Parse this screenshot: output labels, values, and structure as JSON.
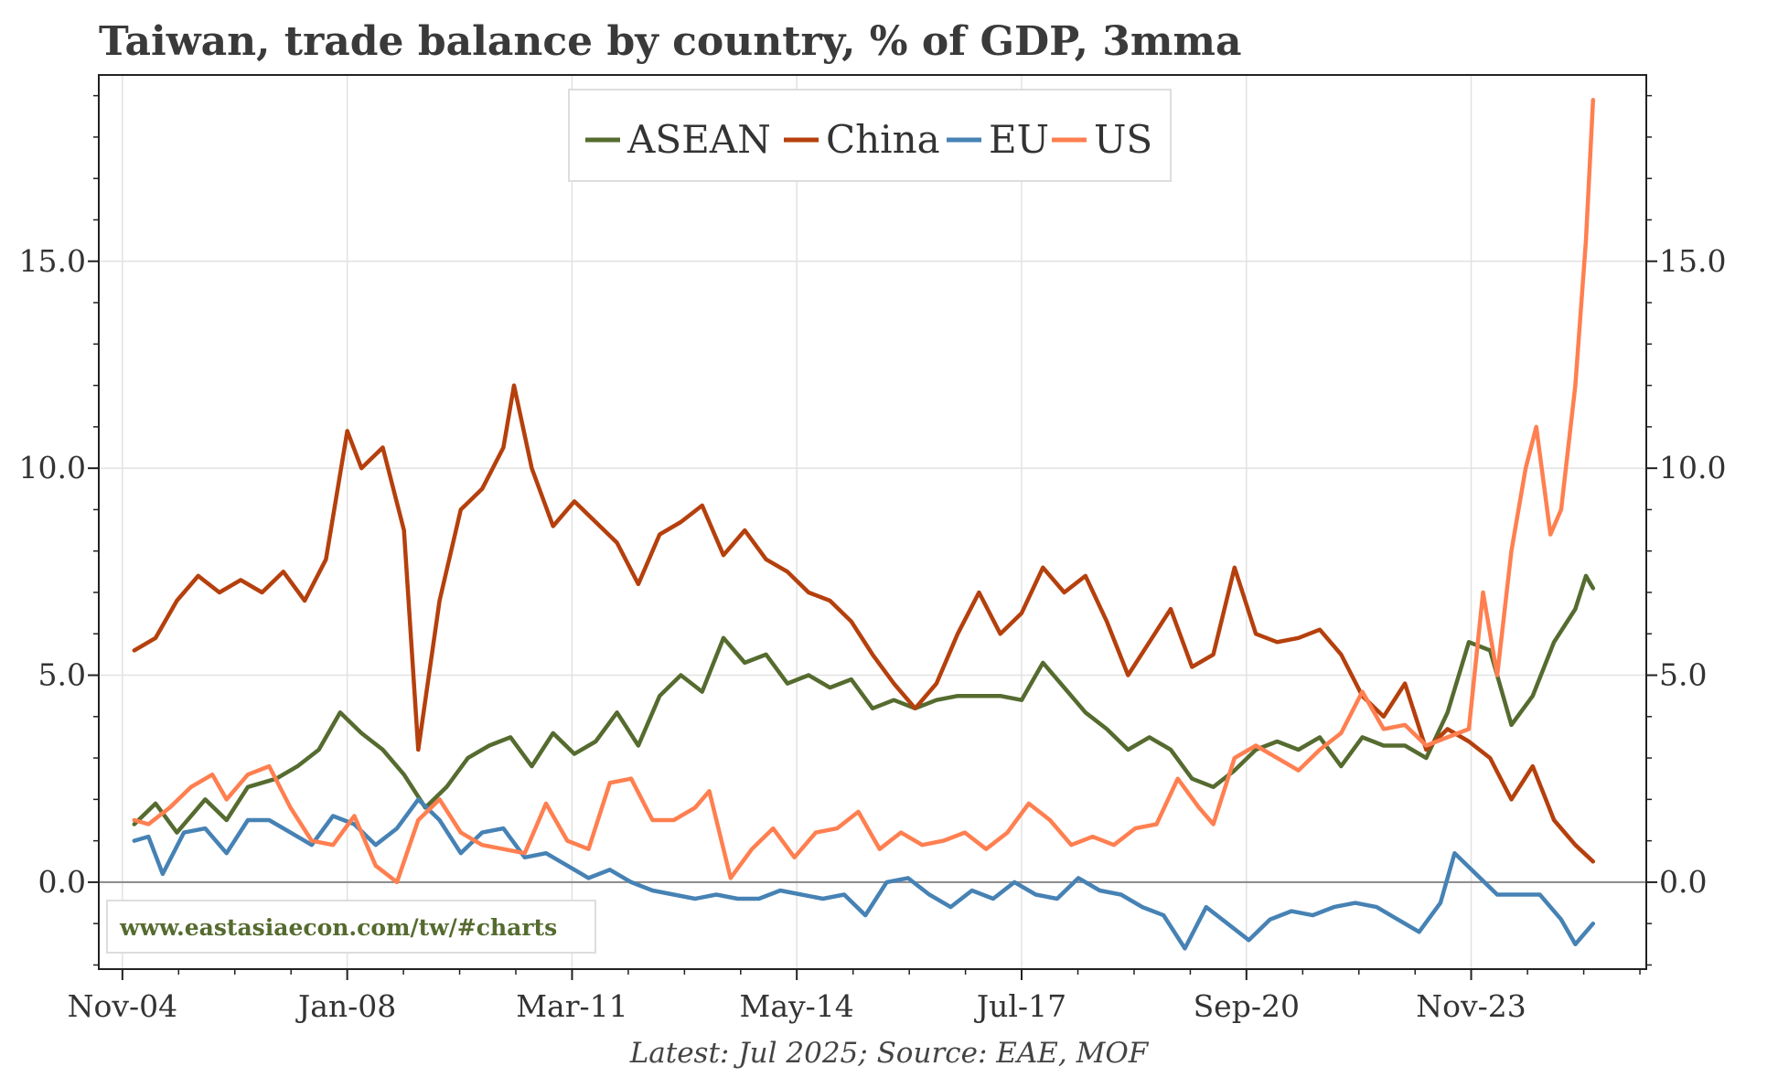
{
  "chart_data": {
    "type": "line",
    "title": "Taiwan, trade balance by country, % of GDP, 3mma",
    "xlabel": "",
    "ylabel": "",
    "ylim": [
      -2.1,
      19.5
    ],
    "yticks": [
      0.0,
      5.0,
      10.0,
      15.0
    ],
    "ytick_labels": [
      "0.0",
      "5.0",
      "10.0",
      "15.0"
    ],
    "xlim": [
      2004.5,
      2026.3
    ],
    "xticks": [
      2004.833,
      2008.0,
      2011.167,
      2014.333,
      2017.5,
      2020.667,
      2023.833
    ],
    "xtick_labels": [
      "Nov-04",
      "Jan-08",
      "Mar-11",
      "May-14",
      "Jul-17",
      "Sep-20",
      "Nov-23"
    ],
    "legend_position": "top-center",
    "grid": true,
    "zero_line": 0.0,
    "source": "Latest: Jul 2025; Source: EAE, MOF",
    "watermark": "www.eastasiaecon.com/tw/#charts",
    "colors": {
      "ASEAN": "#556b2f",
      "China": "#b5400d",
      "EU": "#4682b4",
      "US": "#ff7f50",
      "watermark": "#556b2f"
    },
    "series": [
      {
        "name": "ASEAN",
        "color": "#556b2f",
        "points": [
          [
            2005.0,
            1.4
          ],
          [
            2005.3,
            1.9
          ],
          [
            2005.6,
            1.2
          ],
          [
            2006.0,
            2.0
          ],
          [
            2006.3,
            1.5
          ],
          [
            2006.6,
            2.3
          ],
          [
            2007.0,
            2.5
          ],
          [
            2007.3,
            2.8
          ],
          [
            2007.6,
            3.2
          ],
          [
            2007.9,
            4.1
          ],
          [
            2008.2,
            3.6
          ],
          [
            2008.5,
            3.2
          ],
          [
            2008.8,
            2.6
          ],
          [
            2009.1,
            1.8
          ],
          [
            2009.4,
            2.3
          ],
          [
            2009.7,
            3.0
          ],
          [
            2010.0,
            3.3
          ],
          [
            2010.3,
            3.5
          ],
          [
            2010.6,
            2.8
          ],
          [
            2010.9,
            3.6
          ],
          [
            2011.2,
            3.1
          ],
          [
            2011.5,
            3.4
          ],
          [
            2011.8,
            4.1
          ],
          [
            2012.1,
            3.3
          ],
          [
            2012.4,
            4.5
          ],
          [
            2012.7,
            5.0
          ],
          [
            2013.0,
            4.6
          ],
          [
            2013.3,
            5.9
          ],
          [
            2013.6,
            5.3
          ],
          [
            2013.9,
            5.5
          ],
          [
            2014.2,
            4.8
          ],
          [
            2014.5,
            5.0
          ],
          [
            2014.8,
            4.7
          ],
          [
            2015.1,
            4.9
          ],
          [
            2015.4,
            4.2
          ],
          [
            2015.7,
            4.4
          ],
          [
            2016.0,
            4.2
          ],
          [
            2016.3,
            4.4
          ],
          [
            2016.6,
            4.5
          ],
          [
            2016.9,
            4.5
          ],
          [
            2017.2,
            4.5
          ],
          [
            2017.5,
            4.4
          ],
          [
            2017.8,
            5.3
          ],
          [
            2018.1,
            4.7
          ],
          [
            2018.4,
            4.1
          ],
          [
            2018.7,
            3.7
          ],
          [
            2019.0,
            3.2
          ],
          [
            2019.3,
            3.5
          ],
          [
            2019.6,
            3.2
          ],
          [
            2019.9,
            2.5
          ],
          [
            2020.2,
            2.3
          ],
          [
            2020.5,
            2.7
          ],
          [
            2020.8,
            3.2
          ],
          [
            2021.1,
            3.4
          ],
          [
            2021.4,
            3.2
          ],
          [
            2021.7,
            3.5
          ],
          [
            2022.0,
            2.8
          ],
          [
            2022.3,
            3.5
          ],
          [
            2022.6,
            3.3
          ],
          [
            2022.9,
            3.3
          ],
          [
            2023.2,
            3.0
          ],
          [
            2023.5,
            4.1
          ],
          [
            2023.8,
            5.8
          ],
          [
            2024.1,
            5.6
          ],
          [
            2024.4,
            3.8
          ],
          [
            2024.7,
            4.5
          ],
          [
            2025.0,
            5.8
          ],
          [
            2025.3,
            6.6
          ],
          [
            2025.45,
            7.4
          ],
          [
            2025.55,
            7.1
          ]
        ]
      },
      {
        "name": "China",
        "color": "#b5400d",
        "points": [
          [
            2005.0,
            5.6
          ],
          [
            2005.3,
            5.9
          ],
          [
            2005.6,
            6.8
          ],
          [
            2005.9,
            7.4
          ],
          [
            2006.2,
            7.0
          ],
          [
            2006.5,
            7.3
          ],
          [
            2006.8,
            7.0
          ],
          [
            2007.1,
            7.5
          ],
          [
            2007.4,
            6.8
          ],
          [
            2007.7,
            7.8
          ],
          [
            2008.0,
            10.9
          ],
          [
            2008.2,
            10.0
          ],
          [
            2008.5,
            10.5
          ],
          [
            2008.8,
            8.5
          ],
          [
            2009.0,
            3.2
          ],
          [
            2009.3,
            6.8
          ],
          [
            2009.6,
            9.0
          ],
          [
            2009.9,
            9.5
          ],
          [
            2010.2,
            10.5
          ],
          [
            2010.35,
            12.0
          ],
          [
            2010.6,
            10.0
          ],
          [
            2010.9,
            8.6
          ],
          [
            2011.2,
            9.2
          ],
          [
            2011.5,
            8.7
          ],
          [
            2011.8,
            8.2
          ],
          [
            2012.1,
            7.2
          ],
          [
            2012.4,
            8.4
          ],
          [
            2012.7,
            8.7
          ],
          [
            2013.0,
            9.1
          ],
          [
            2013.3,
            7.9
          ],
          [
            2013.6,
            8.5
          ],
          [
            2013.9,
            7.8
          ],
          [
            2014.2,
            7.5
          ],
          [
            2014.5,
            7.0
          ],
          [
            2014.8,
            6.8
          ],
          [
            2015.1,
            6.3
          ],
          [
            2015.4,
            5.5
          ],
          [
            2015.7,
            4.8
          ],
          [
            2016.0,
            4.2
          ],
          [
            2016.3,
            4.8
          ],
          [
            2016.6,
            6.0
          ],
          [
            2016.9,
            7.0
          ],
          [
            2017.2,
            6.0
          ],
          [
            2017.5,
            6.5
          ],
          [
            2017.8,
            7.6
          ],
          [
            2018.1,
            7.0
          ],
          [
            2018.4,
            7.4
          ],
          [
            2018.7,
            6.3
          ],
          [
            2019.0,
            5.0
          ],
          [
            2019.3,
            5.8
          ],
          [
            2019.6,
            6.6
          ],
          [
            2019.9,
            5.2
          ],
          [
            2020.2,
            5.5
          ],
          [
            2020.5,
            7.6
          ],
          [
            2020.8,
            6.0
          ],
          [
            2021.1,
            5.8
          ],
          [
            2021.4,
            5.9
          ],
          [
            2021.7,
            6.1
          ],
          [
            2022.0,
            5.5
          ],
          [
            2022.3,
            4.5
          ],
          [
            2022.6,
            4.0
          ],
          [
            2022.9,
            4.8
          ],
          [
            2023.2,
            3.2
          ],
          [
            2023.5,
            3.7
          ],
          [
            2023.8,
            3.4
          ],
          [
            2024.1,
            3.0
          ],
          [
            2024.4,
            2.0
          ],
          [
            2024.7,
            2.8
          ],
          [
            2025.0,
            1.5
          ],
          [
            2025.3,
            0.9
          ],
          [
            2025.55,
            0.5
          ]
        ]
      },
      {
        "name": "EU",
        "color": "#4682b4",
        "points": [
          [
            2005.0,
            1.0
          ],
          [
            2005.2,
            1.1
          ],
          [
            2005.4,
            0.2
          ],
          [
            2005.7,
            1.2
          ],
          [
            2006.0,
            1.3
          ],
          [
            2006.3,
            0.7
          ],
          [
            2006.6,
            1.5
          ],
          [
            2006.9,
            1.5
          ],
          [
            2007.2,
            1.2
          ],
          [
            2007.5,
            0.9
          ],
          [
            2007.8,
            1.6
          ],
          [
            2008.1,
            1.4
          ],
          [
            2008.4,
            0.9
          ],
          [
            2008.7,
            1.3
          ],
          [
            2009.0,
            2.0
          ],
          [
            2009.3,
            1.5
          ],
          [
            2009.6,
            0.7
          ],
          [
            2009.9,
            1.2
          ],
          [
            2010.2,
            1.3
          ],
          [
            2010.5,
            0.6
          ],
          [
            2010.8,
            0.7
          ],
          [
            2011.1,
            0.4
          ],
          [
            2011.4,
            0.1
          ],
          [
            2011.7,
            0.3
          ],
          [
            2012.0,
            0.0
          ],
          [
            2012.3,
            -0.2
          ],
          [
            2012.6,
            -0.3
          ],
          [
            2012.9,
            -0.4
          ],
          [
            2013.2,
            -0.3
          ],
          [
            2013.5,
            -0.4
          ],
          [
            2013.8,
            -0.4
          ],
          [
            2014.1,
            -0.2
          ],
          [
            2014.4,
            -0.3
          ],
          [
            2014.7,
            -0.4
          ],
          [
            2015.0,
            -0.3
          ],
          [
            2015.3,
            -0.8
          ],
          [
            2015.6,
            0.0
          ],
          [
            2015.9,
            0.1
          ],
          [
            2016.2,
            -0.3
          ],
          [
            2016.5,
            -0.6
          ],
          [
            2016.8,
            -0.2
          ],
          [
            2017.1,
            -0.4
          ],
          [
            2017.4,
            0.0
          ],
          [
            2017.7,
            -0.3
          ],
          [
            2018.0,
            -0.4
          ],
          [
            2018.3,
            0.1
          ],
          [
            2018.6,
            -0.2
          ],
          [
            2018.9,
            -0.3
          ],
          [
            2019.2,
            -0.6
          ],
          [
            2019.5,
            -0.8
          ],
          [
            2019.8,
            -1.6
          ],
          [
            2020.1,
            -0.6
          ],
          [
            2020.4,
            -1.0
          ],
          [
            2020.7,
            -1.4
          ],
          [
            2021.0,
            -0.9
          ],
          [
            2021.3,
            -0.7
          ],
          [
            2021.6,
            -0.8
          ],
          [
            2021.9,
            -0.6
          ],
          [
            2022.2,
            -0.5
          ],
          [
            2022.5,
            -0.6
          ],
          [
            2022.8,
            -0.9
          ],
          [
            2023.1,
            -1.2
          ],
          [
            2023.4,
            -0.5
          ],
          [
            2023.6,
            0.7
          ],
          [
            2023.9,
            0.2
          ],
          [
            2024.2,
            -0.3
          ],
          [
            2024.5,
            -0.3
          ],
          [
            2024.8,
            -0.3
          ],
          [
            2025.1,
            -0.9
          ],
          [
            2025.3,
            -1.5
          ],
          [
            2025.55,
            -1.0
          ]
        ]
      },
      {
        "name": "US",
        "color": "#ff7f50",
        "points": [
          [
            2005.0,
            1.5
          ],
          [
            2005.2,
            1.4
          ],
          [
            2005.5,
            1.8
          ],
          [
            2005.8,
            2.3
          ],
          [
            2006.1,
            2.6
          ],
          [
            2006.3,
            2.0
          ],
          [
            2006.6,
            2.6
          ],
          [
            2006.9,
            2.8
          ],
          [
            2007.2,
            1.8
          ],
          [
            2007.5,
            1.0
          ],
          [
            2007.8,
            0.9
          ],
          [
            2008.1,
            1.6
          ],
          [
            2008.4,
            0.4
          ],
          [
            2008.7,
            0.0
          ],
          [
            2009.0,
            1.5
          ],
          [
            2009.3,
            2.0
          ],
          [
            2009.6,
            1.2
          ],
          [
            2009.9,
            0.9
          ],
          [
            2010.2,
            0.8
          ],
          [
            2010.5,
            0.7
          ],
          [
            2010.8,
            1.9
          ],
          [
            2011.1,
            1.0
          ],
          [
            2011.4,
            0.8
          ],
          [
            2011.7,
            2.4
          ],
          [
            2012.0,
            2.5
          ],
          [
            2012.3,
            1.5
          ],
          [
            2012.6,
            1.5
          ],
          [
            2012.9,
            1.8
          ],
          [
            2013.1,
            2.2
          ],
          [
            2013.4,
            0.1
          ],
          [
            2013.7,
            0.8
          ],
          [
            2014.0,
            1.3
          ],
          [
            2014.3,
            0.6
          ],
          [
            2014.6,
            1.2
          ],
          [
            2014.9,
            1.3
          ],
          [
            2015.2,
            1.7
          ],
          [
            2015.5,
            0.8
          ],
          [
            2015.8,
            1.2
          ],
          [
            2016.1,
            0.9
          ],
          [
            2016.4,
            1.0
          ],
          [
            2016.7,
            1.2
          ],
          [
            2017.0,
            0.8
          ],
          [
            2017.3,
            1.2
          ],
          [
            2017.6,
            1.9
          ],
          [
            2017.9,
            1.5
          ],
          [
            2018.2,
            0.9
          ],
          [
            2018.5,
            1.1
          ],
          [
            2018.8,
            0.9
          ],
          [
            2019.1,
            1.3
          ],
          [
            2019.4,
            1.4
          ],
          [
            2019.7,
            2.5
          ],
          [
            2020.0,
            1.8
          ],
          [
            2020.2,
            1.4
          ],
          [
            2020.5,
            3.0
          ],
          [
            2020.8,
            3.3
          ],
          [
            2021.1,
            3.0
          ],
          [
            2021.4,
            2.7
          ],
          [
            2021.7,
            3.2
          ],
          [
            2022.0,
            3.6
          ],
          [
            2022.3,
            4.6
          ],
          [
            2022.6,
            3.7
          ],
          [
            2022.9,
            3.8
          ],
          [
            2023.2,
            3.3
          ],
          [
            2023.5,
            3.5
          ],
          [
            2023.8,
            3.7
          ],
          [
            2024.0,
            7.0
          ],
          [
            2024.2,
            5.0
          ],
          [
            2024.4,
            8.0
          ],
          [
            2024.6,
            10.0
          ],
          [
            2024.75,
            11.0
          ],
          [
            2024.95,
            8.4
          ],
          [
            2025.1,
            9.0
          ],
          [
            2025.3,
            12.0
          ],
          [
            2025.45,
            15.5
          ],
          [
            2025.55,
            18.9
          ]
        ]
      }
    ]
  }
}
